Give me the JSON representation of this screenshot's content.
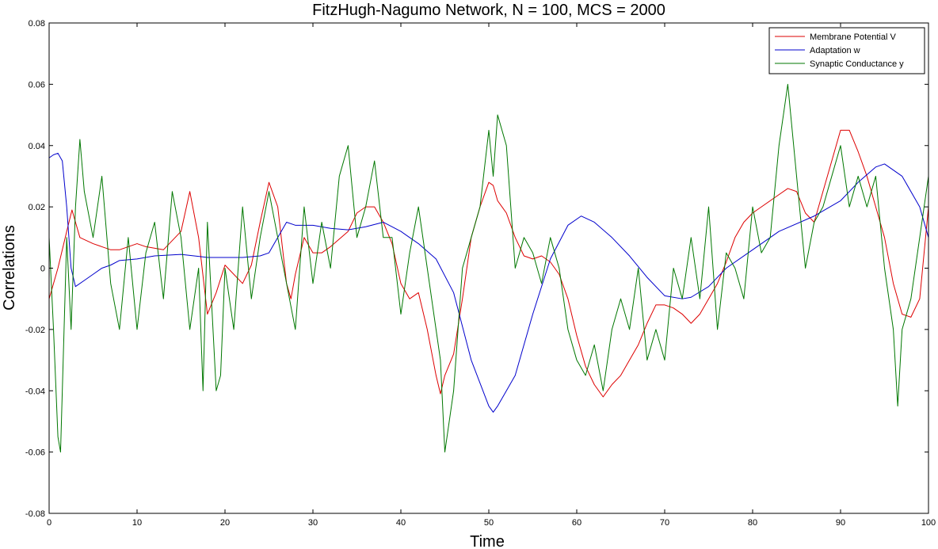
{
  "chart_data": {
    "type": "line",
    "title": "FitzHugh-Nagumo Network, N = 100, MCS = 2000",
    "xlabel": "Time",
    "ylabel": "Correlations",
    "xlim": [
      0,
      100
    ],
    "ylim": [
      -0.08,
      0.08
    ],
    "x_ticks": [
      "0",
      "10",
      "20",
      "30",
      "40",
      "50",
      "60",
      "70",
      "80",
      "90",
      "100"
    ],
    "y_ticks": [
      "-0.08",
      "-0.06",
      "-0.04",
      "-0.02",
      "0",
      "0.02",
      "0.04",
      "0.06",
      "0.08"
    ],
    "grid": false,
    "legend_position": "top-right",
    "series": [
      {
        "name": "Membrane Potential V",
        "color": "#dd0000",
        "x": [
          0,
          1,
          2,
          2.6,
          3.5,
          5,
          7,
          8,
          10,
          11,
          13,
          15,
          16,
          17,
          18,
          19,
          20,
          21,
          22,
          23,
          24,
          25,
          26,
          27,
          27.5,
          28,
          29,
          30,
          31,
          32,
          34,
          35,
          36,
          37,
          38,
          39,
          40,
          41,
          42,
          43,
          44,
          44.5,
          45,
          46,
          47,
          48,
          49,
          50,
          50.5,
          51,
          52,
          53,
          54,
          55,
          56,
          57,
          58,
          59,
          60,
          61,
          62,
          63,
          64,
          65,
          66,
          67,
          68,
          69,
          70,
          71,
          72,
          73,
          74,
          75,
          76,
          77,
          78,
          79,
          80,
          81,
          82,
          83,
          84,
          85,
          86,
          87,
          88,
          89,
          90,
          91,
          92,
          93,
          94,
          95,
          96,
          97,
          98,
          99,
          100
        ],
        "y": [
          -0.01,
          0.0,
          0.012,
          0.019,
          0.01,
          0.008,
          0.006,
          0.006,
          0.008,
          0.007,
          0.006,
          0.012,
          0.025,
          0.01,
          -0.015,
          -0.008,
          0.001,
          -0.002,
          -0.005,
          0.001,
          0.015,
          0.028,
          0.02,
          -0.005,
          -0.01,
          -0.002,
          0.01,
          0.005,
          0.005,
          0.007,
          0.012,
          0.018,
          0.02,
          0.02,
          0.015,
          0.008,
          -0.005,
          -0.01,
          -0.008,
          -0.02,
          -0.035,
          -0.041,
          -0.035,
          -0.028,
          -0.01,
          0.01,
          0.02,
          0.028,
          0.027,
          0.022,
          0.018,
          0.01,
          0.004,
          0.003,
          0.004,
          0.002,
          -0.002,
          -0.01,
          -0.022,
          -0.032,
          -0.038,
          -0.042,
          -0.038,
          -0.035,
          -0.03,
          -0.025,
          -0.018,
          -0.012,
          -0.012,
          -0.013,
          -0.015,
          -0.018,
          -0.015,
          -0.01,
          -0.005,
          0.002,
          0.01,
          0.015,
          0.018,
          0.02,
          0.022,
          0.024,
          0.026,
          0.025,
          0.018,
          0.015,
          0.025,
          0.035,
          0.045,
          0.045,
          0.038,
          0.03,
          0.02,
          0.01,
          -0.005,
          -0.015,
          -0.016,
          -0.01,
          0.02
        ]
      },
      {
        "name": "Adaptation w",
        "color": "#0000cc",
        "x": [
          0,
          0.5,
          1,
          1.5,
          2,
          2.5,
          3,
          4,
          5,
          6,
          7,
          8,
          10,
          12,
          15,
          18,
          20,
          22,
          24,
          25,
          26,
          27,
          28,
          30,
          32,
          34,
          36,
          38,
          40,
          42,
          44,
          46,
          48,
          50,
          50.5,
          51,
          53,
          55,
          57,
          59,
          60.5,
          62,
          64,
          66,
          68,
          70,
          72,
          73,
          75,
          77,
          80,
          83,
          87,
          90,
          92,
          94,
          95,
          97,
          99,
          100
        ],
        "y": [
          0.036,
          0.037,
          0.0375,
          0.035,
          0.02,
          0.0,
          -0.006,
          -0.004,
          -0.002,
          0.0,
          0.001,
          0.0025,
          0.003,
          0.004,
          0.0045,
          0.0035,
          0.0035,
          0.0035,
          0.004,
          0.005,
          0.01,
          0.015,
          0.014,
          0.014,
          0.013,
          0.0125,
          0.0135,
          0.015,
          0.012,
          0.008,
          0.003,
          -0.008,
          -0.03,
          -0.045,
          -0.047,
          -0.045,
          -0.035,
          -0.015,
          0.003,
          0.014,
          0.017,
          0.015,
          0.01,
          0.004,
          -0.003,
          -0.009,
          -0.01,
          -0.0095,
          -0.006,
          0.0,
          0.006,
          0.012,
          0.017,
          0.022,
          0.028,
          0.033,
          0.034,
          0.03,
          0.02,
          0.01
        ]
      },
      {
        "name": "Synaptic Conductance y",
        "color": "#007700",
        "x": [
          0,
          0.5,
          1,
          1.3,
          1.6,
          2,
          2.5,
          3,
          3.5,
          4,
          5,
          6,
          7,
          8,
          9,
          10,
          11,
          12,
          13,
          14,
          15,
          16,
          17,
          17.5,
          18,
          19,
          19.5,
          20,
          21,
          22,
          23,
          24,
          25,
          26,
          27,
          28,
          29,
          30,
          31,
          32,
          33,
          34,
          35,
          36,
          37,
          38,
          39,
          40,
          41,
          42,
          43,
          44,
          44.5,
          45,
          46,
          47,
          48,
          49,
          50,
          50.5,
          51,
          52,
          53,
          54,
          55,
          56,
          57,
          58,
          59,
          60,
          61,
          62,
          63,
          64,
          65,
          66,
          67,
          68,
          69,
          70,
          71,
          72,
          73,
          74,
          75,
          76,
          77,
          78,
          79,
          80,
          81,
          82,
          83,
          84,
          85,
          86,
          87,
          88,
          89,
          90,
          91,
          92,
          93,
          94,
          95,
          96,
          96.5,
          97,
          98,
          99,
          100
        ],
        "y": [
          0.01,
          -0.02,
          -0.055,
          -0.06,
          -0.03,
          0.01,
          -0.02,
          0.02,
          0.042,
          0.025,
          0.01,
          0.03,
          -0.005,
          -0.02,
          0.01,
          -0.02,
          0.005,
          0.015,
          -0.01,
          0.025,
          0.01,
          -0.02,
          0.0,
          -0.04,
          0.015,
          -0.04,
          -0.035,
          0.0,
          -0.02,
          0.02,
          -0.01,
          0.01,
          0.025,
          0.01,
          -0.005,
          -0.02,
          0.02,
          -0.005,
          0.015,
          0.0,
          0.03,
          0.04,
          0.01,
          0.02,
          0.035,
          0.01,
          0.01,
          -0.015,
          0.005,
          0.02,
          0.0,
          -0.02,
          -0.03,
          -0.06,
          -0.04,
          0.0,
          0.01,
          0.02,
          0.045,
          0.03,
          0.05,
          0.04,
          0.0,
          0.01,
          0.005,
          -0.005,
          0.01,
          0.0,
          -0.02,
          -0.03,
          -0.035,
          -0.025,
          -0.04,
          -0.02,
          -0.01,
          -0.02,
          0.0,
          -0.03,
          -0.02,
          -0.03,
          0.0,
          -0.01,
          0.01,
          -0.01,
          0.02,
          -0.02,
          0.005,
          0.0,
          -0.01,
          0.02,
          0.005,
          0.01,
          0.04,
          0.06,
          0.03,
          0.0,
          0.015,
          0.02,
          0.03,
          0.04,
          0.02,
          0.03,
          0.02,
          0.03,
          0.0,
          -0.02,
          -0.045,
          -0.02,
          -0.01,
          0.01,
          0.03
        ]
      }
    ]
  }
}
